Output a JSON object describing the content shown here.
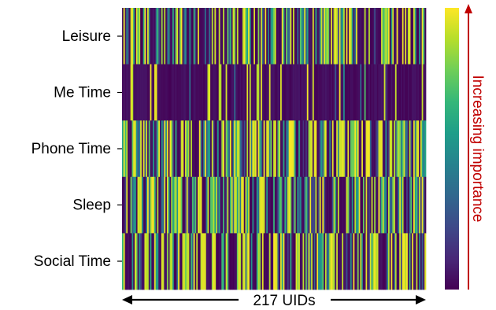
{
  "chart_data": {
    "type": "heatmap",
    "title": "",
    "rows": [
      "Leisure",
      "Me Time",
      "Phone Time",
      "Sleep",
      "Social Time"
    ],
    "x_count": 217,
    "xlabel": "217 UIDs",
    "colorbar_label": "Increasing importance",
    "colormap": "viridis",
    "value_range": [
      0,
      1
    ],
    "colorbar_ticks": "none",
    "seed": 217
  },
  "colors": {
    "arrow": "#000000",
    "colorbar_arrow": "#c00000",
    "viridis_stops": [
      "#440154",
      "#482878",
      "#3e4989",
      "#31688e",
      "#26828e",
      "#1f9e89",
      "#35b779",
      "#6ece58",
      "#b5de2b",
      "#fde725"
    ]
  }
}
